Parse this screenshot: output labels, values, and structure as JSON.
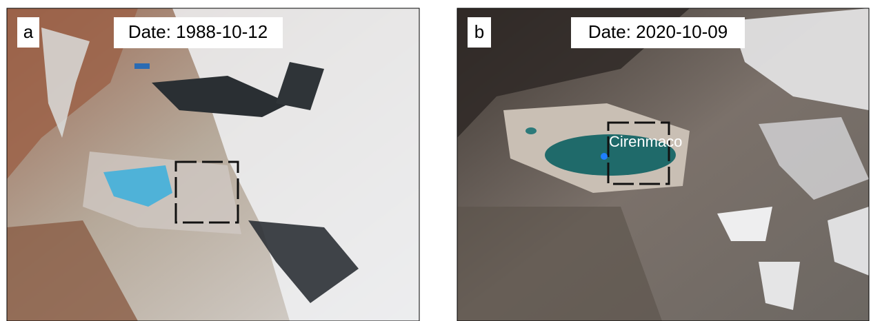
{
  "panels": [
    {
      "label": "a",
      "date": "Date: 1988-10-12"
    },
    {
      "label": "b",
      "date": "Date: 2020-10-09",
      "lake_name": "Cirenmaco"
    }
  ]
}
